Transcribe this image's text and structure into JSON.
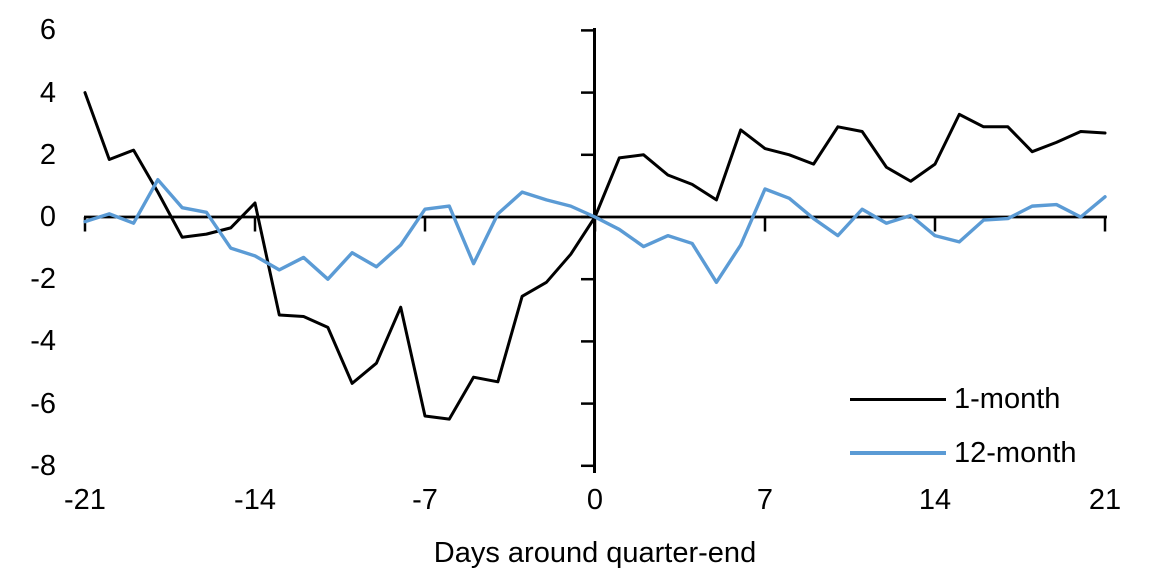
{
  "chart_data": {
    "type": "line",
    "title": "",
    "xlabel": "Days around quarter-end",
    "ylabel": "",
    "xlim": [
      -21,
      21
    ],
    "ylim": [
      -8,
      6
    ],
    "grid": false,
    "legend_position": "inside-bottom-right",
    "axis_color": "#000000",
    "background": "#ffffff",
    "x_ticks": [
      -21,
      -14,
      -7,
      0,
      7,
      14,
      21
    ],
    "y_ticks": [
      6,
      4,
      2,
      0,
      -2,
      -4,
      -6,
      -8
    ],
    "x": [
      -21,
      -20,
      -19,
      -18,
      -17,
      -16,
      -15,
      -14,
      -13,
      -12,
      -11,
      -10,
      -9,
      -8,
      -7,
      -6,
      -5,
      -4,
      -3,
      -2,
      -1,
      0,
      1,
      2,
      3,
      4,
      5,
      6,
      7,
      8,
      9,
      10,
      11,
      12,
      13,
      14,
      15,
      16,
      17,
      18,
      19,
      20,
      21
    ],
    "series": [
      {
        "name": "1-month",
        "color": "#000000",
        "values": [
          4.0,
          1.85,
          2.15,
          0.8,
          -0.65,
          -0.55,
          -0.35,
          0.45,
          -3.15,
          -3.2,
          -3.55,
          -5.35,
          -4.7,
          -2.9,
          -6.4,
          -6.5,
          -5.15,
          -5.3,
          -2.55,
          -2.1,
          -1.2,
          0.0,
          1.9,
          2.0,
          1.35,
          1.05,
          0.55,
          2.8,
          2.2,
          2.0,
          1.7,
          2.9,
          2.75,
          1.6,
          1.15,
          1.7,
          3.3,
          2.9,
          2.9,
          2.1,
          2.4,
          2.75,
          2.7
        ]
      },
      {
        "name": "12-month",
        "color": "#5B9BD5",
        "values": [
          -0.15,
          0.1,
          -0.2,
          1.2,
          0.3,
          0.15,
          -1.0,
          -1.25,
          -1.7,
          -1.3,
          -2.0,
          -1.15,
          -1.6,
          -0.9,
          0.25,
          0.35,
          -1.5,
          0.1,
          0.8,
          0.55,
          0.35,
          0.0,
          -0.4,
          -0.95,
          -0.6,
          -0.85,
          -2.1,
          -0.9,
          0.9,
          0.6,
          -0.05,
          -0.6,
          0.25,
          -0.2,
          0.05,
          -0.6,
          -0.8,
          -0.1,
          -0.05,
          0.35,
          0.4,
          0.0,
          0.65
        ]
      }
    ]
  }
}
